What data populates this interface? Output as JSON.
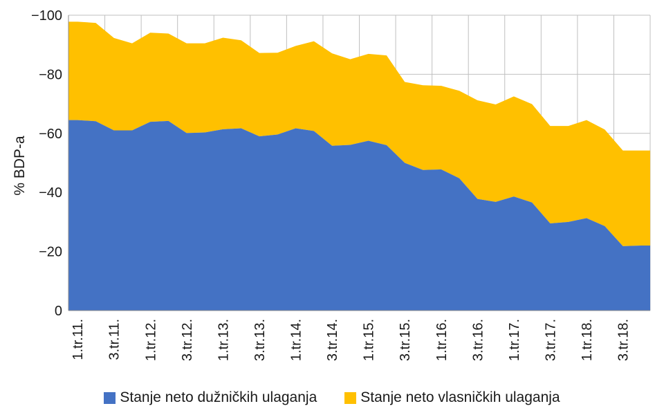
{
  "chart_data": {
    "type": "area",
    "stacked": true,
    "ylabel": "% BDP-a",
    "yticks": [
      "0",
      "−20",
      "−40",
      "−60",
      "−80",
      "−100"
    ],
    "ytick_values": [
      0,
      -20,
      -40,
      -60,
      -80,
      -100
    ],
    "ylim": [
      0,
      -100
    ],
    "y_axis_reversed": true,
    "grid": true,
    "legend_position": "bottom",
    "x_tick_labels": [
      "1.tr.11.",
      "3.tr.11.",
      "1.tr.12.",
      "3.tr.12.",
      "1.tr.13.",
      "3.tr.13.",
      "1.tr.14.",
      "3.tr.14.",
      "1.tr.15.",
      "3.tr.15.",
      "1.tr.16.",
      "3.tr.16.",
      "1.tr.17.",
      "3.tr.17.",
      "1.tr.18.",
      "3.tr.18."
    ],
    "x": [
      "1.tr.11.",
      "2.tr.11.",
      "3.tr.11.",
      "4.tr.11.",
      "1.tr.12.",
      "2.tr.12.",
      "3.tr.12.",
      "4.tr.12.",
      "1.tr.13.",
      "2.tr.13.",
      "3.tr.13.",
      "4.tr.13.",
      "1.tr.14.",
      "2.tr.14.",
      "3.tr.14.",
      "4.tr.14.",
      "1.tr.15.",
      "2.tr.15.",
      "3.tr.15.",
      "4.tr.15.",
      "1.tr.16.",
      "2.tr.16.",
      "3.tr.16.",
      "4.tr.16.",
      "1.tr.17.",
      "2.tr.17.",
      "3.tr.17.",
      "4.tr.17.",
      "1.tr.18.",
      "2.tr.18.",
      "3.tr.18.",
      "4.tr.18."
    ],
    "series": [
      {
        "name": "Stanje neto dužničkih ulaganja",
        "color": "#4472c4",
        "values": [
          -64.5,
          -64.1,
          -61.0,
          -61.0,
          -63.9,
          -64.2,
          -60.1,
          -60.3,
          -61.4,
          -61.7,
          -59.0,
          -59.6,
          -61.7,
          -60.8,
          -55.8,
          -56.1,
          -57.5,
          -56.0,
          -50.0,
          -47.6,
          -47.8,
          -44.8,
          -37.8,
          -36.8,
          -38.6,
          -36.6,
          -29.5,
          -30.0,
          -31.3,
          -28.6,
          -21.8,
          -22.0
        ]
      },
      {
        "name": "Stanje neto vlasničkih ulaganja",
        "color": "#ffc000",
        "values": [
          -33.3,
          -33.3,
          -31.3,
          -29.5,
          -30.2,
          -29.6,
          -30.4,
          -30.2,
          -31.0,
          -29.8,
          -28.2,
          -27.7,
          -27.9,
          -30.4,
          -31.3,
          -29.0,
          -29.4,
          -30.4,
          -27.4,
          -28.7,
          -28.3,
          -29.6,
          -33.4,
          -33.0,
          -33.9,
          -33.3,
          -33.0,
          -32.5,
          -33.2,
          -32.7,
          -32.4,
          -32.2
        ]
      }
    ]
  }
}
